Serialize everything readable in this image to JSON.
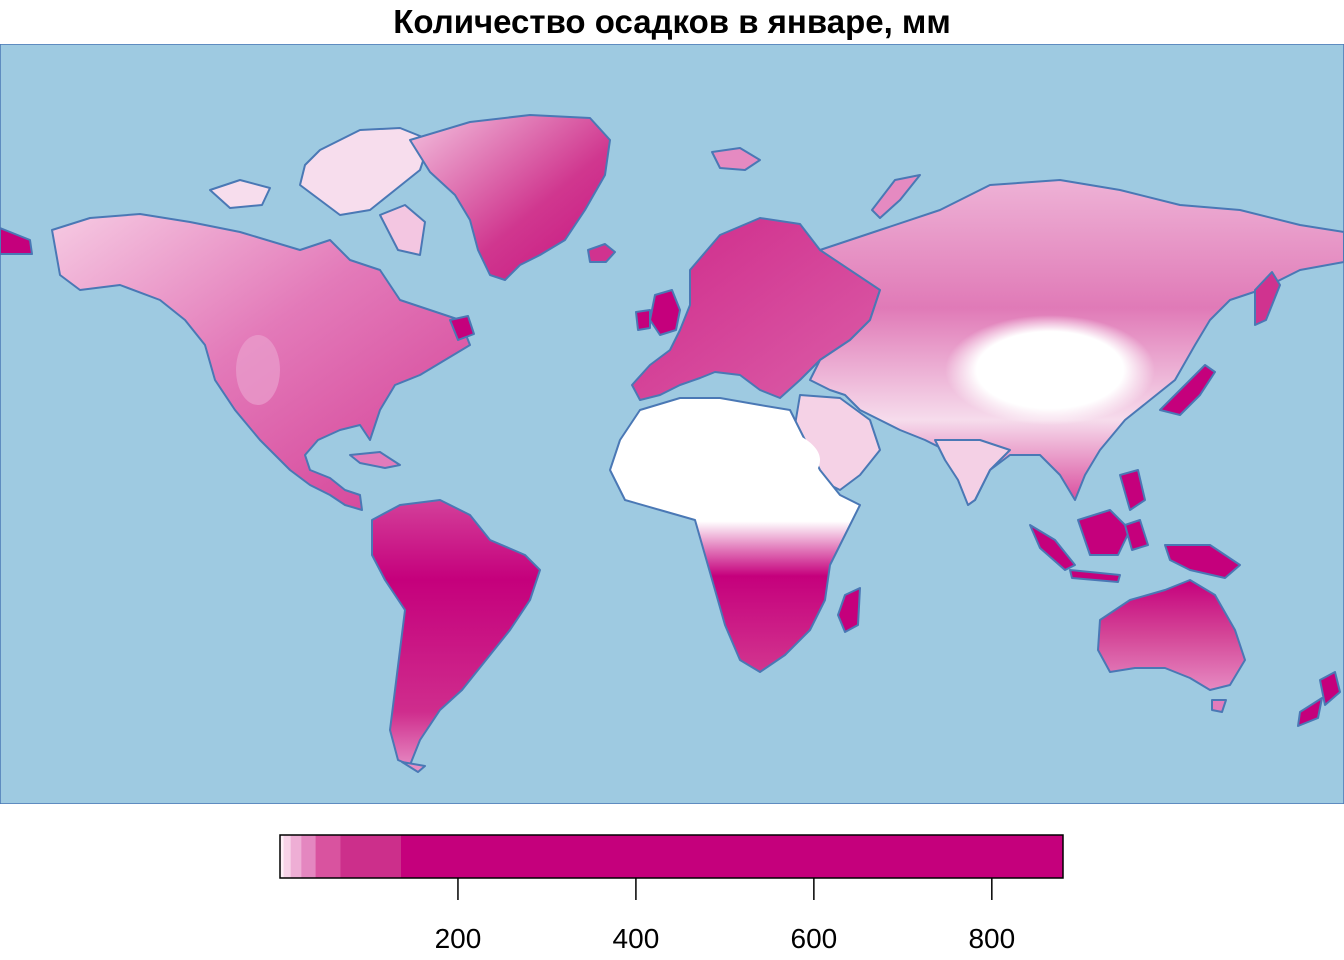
{
  "title": "Количество осадков в январе, мм",
  "colors": {
    "ocean": "#9ecae1",
    "coastline": "#4a78b5",
    "dry": "#ffffff",
    "light": "#f2c4e0",
    "medium": "#e377b8",
    "wet": "#d0338f",
    "very_wet": "#c5007c"
  },
  "legend": {
    "range": [
      0,
      880
    ],
    "ticks": [
      200,
      400,
      600,
      800
    ],
    "tick_labels": [
      "200",
      "400",
      "600",
      "800"
    ],
    "bins": [
      {
        "from": 0,
        "to": 4,
        "color": "#fdf0f7"
      },
      {
        "from": 4,
        "to": 12,
        "color": "#f7d3e8"
      },
      {
        "from": 12,
        "to": 24,
        "color": "#eeaed5"
      },
      {
        "from": 24,
        "to": 40,
        "color": "#e487c0"
      },
      {
        "from": 40,
        "to": 68,
        "color": "#d9539f"
      },
      {
        "from": 68,
        "to": 136,
        "color": "#cc2f8b"
      },
      {
        "from": 136,
        "to": 880,
        "color": "#c5007c"
      }
    ]
  }
}
